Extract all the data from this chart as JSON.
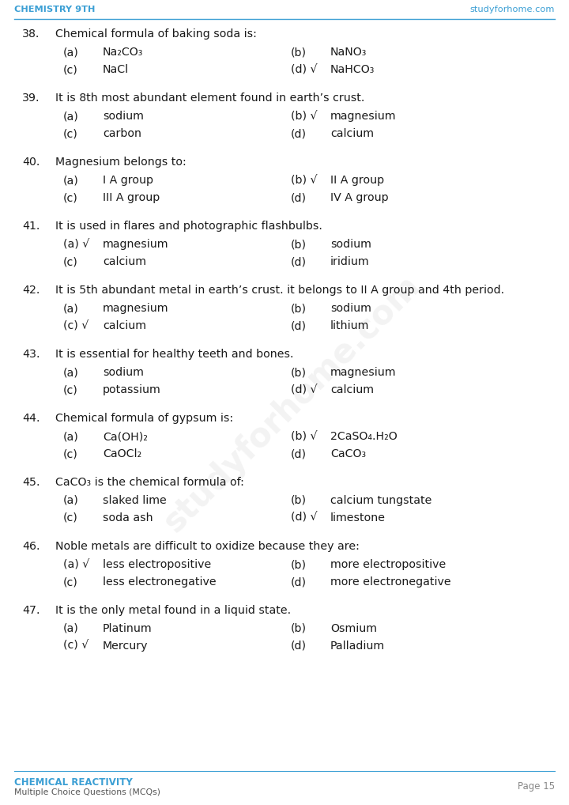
{
  "header_left": "CHEMISTRY 9TH",
  "header_right": "studyforhome.com",
  "footer_left_title": "CHEMICAL REACTIVITY",
  "footer_left_sub": "Multiple Choice Questions (MCQs)",
  "footer_right": "Page 15",
  "header_color": "#3b9fd4",
  "text_color": "#1a1a1a",
  "bg_color": "#ffffff",
  "questions": [
    {
      "num": "38.",
      "question": "Chemical formula of baking soda is:",
      "options": [
        {
          "label": "(a)",
          "check": "",
          "text": "Na₂CO₃"
        },
        {
          "label": "(b)",
          "check": "",
          "text": "NaNO₃"
        },
        {
          "label": "(c)",
          "check": "",
          "text": "NaCl"
        },
        {
          "label": "(d)",
          "check": "✓",
          "text": "NaHCO₃"
        }
      ]
    },
    {
      "num": "39.",
      "question": "It is 8th most abundant element found in earth’s crust.",
      "options": [
        {
          "label": "(a)",
          "check": "",
          "text": "sodium"
        },
        {
          "label": "(b)",
          "check": "✓",
          "text": "magnesium"
        },
        {
          "label": "(c)",
          "check": "",
          "text": "carbon"
        },
        {
          "label": "(d)",
          "check": "",
          "text": "calcium"
        }
      ]
    },
    {
      "num": "40.",
      "question": "Magnesium belongs to:",
      "options": [
        {
          "label": "(a)",
          "check": "",
          "text": "I A group"
        },
        {
          "label": "(b)",
          "check": "✓",
          "text": "II A group"
        },
        {
          "label": "(c)",
          "check": "",
          "text": "III A group"
        },
        {
          "label": "(d)",
          "check": "",
          "text": "IV A group"
        }
      ]
    },
    {
      "num": "41.",
      "question": "It is used in flares and photographic flashbulbs.",
      "options": [
        {
          "label": "(a)",
          "check": "✓",
          "text": "magnesium"
        },
        {
          "label": "(b)",
          "check": "",
          "text": "sodium"
        },
        {
          "label": "(c)",
          "check": "",
          "text": "calcium"
        },
        {
          "label": "(d)",
          "check": "",
          "text": "iridium"
        }
      ]
    },
    {
      "num": "42.",
      "question": "It is 5th abundant metal in earth’s crust. it belongs to II A group and 4th period.",
      "options": [
        {
          "label": "(a)",
          "check": "",
          "text": "magnesium"
        },
        {
          "label": "(b)",
          "check": "",
          "text": "sodium"
        },
        {
          "label": "(c)",
          "check": "✓",
          "text": "calcium"
        },
        {
          "label": "(d)",
          "check": "",
          "text": "lithium"
        }
      ]
    },
    {
      "num": "43.",
      "question": "It is essential for healthy teeth and bones.",
      "options": [
        {
          "label": "(a)",
          "check": "",
          "text": "sodium"
        },
        {
          "label": "(b)",
          "check": "",
          "text": "magnesium"
        },
        {
          "label": "(c)",
          "check": "",
          "text": "potassium"
        },
        {
          "label": "(d)",
          "check": "✓",
          "text": "calcium"
        }
      ]
    },
    {
      "num": "44.",
      "question": "Chemical formula of gypsum is:",
      "options": [
        {
          "label": "(a)",
          "check": "",
          "text": "Ca(OH)₂"
        },
        {
          "label": "(b)",
          "check": "✓",
          "text": "2CaSO₄.H₂O"
        },
        {
          "label": "(c)",
          "check": "",
          "text": "CaOCl₂"
        },
        {
          "label": "(d)",
          "check": "",
          "text": "CaCO₃"
        }
      ]
    },
    {
      "num": "45.",
      "question": "CaCO₃ is the chemical formula of:",
      "options": [
        {
          "label": "(a)",
          "check": "",
          "text": "slaked lime"
        },
        {
          "label": "(b)",
          "check": "",
          "text": "calcium tungstate"
        },
        {
          "label": "(c)",
          "check": "",
          "text": "soda ash"
        },
        {
          "label": "(d)",
          "check": "✓",
          "text": "limestone"
        }
      ]
    },
    {
      "num": "46.",
      "question": "Noble metals are difficult to oxidize because they are:",
      "options": [
        {
          "label": "(a)",
          "check": "✓",
          "text": "less electropositive"
        },
        {
          "label": "(b)",
          "check": "",
          "text": "more electropositive"
        },
        {
          "label": "(c)",
          "check": "",
          "text": "less electronegative"
        },
        {
          "label": "(d)",
          "check": "",
          "text": "more electronegative"
        }
      ]
    },
    {
      "num": "47.",
      "question": "It is the only metal found in a liquid state.",
      "options": [
        {
          "label": "(a)",
          "check": "",
          "text": "Platinum"
        },
        {
          "label": "(b)",
          "check": "",
          "text": "Osmium"
        },
        {
          "label": "(c)",
          "check": "✓",
          "text": "Mercury"
        },
        {
          "label": "(d)",
          "check": "",
          "text": "Palladium"
        }
      ]
    }
  ]
}
